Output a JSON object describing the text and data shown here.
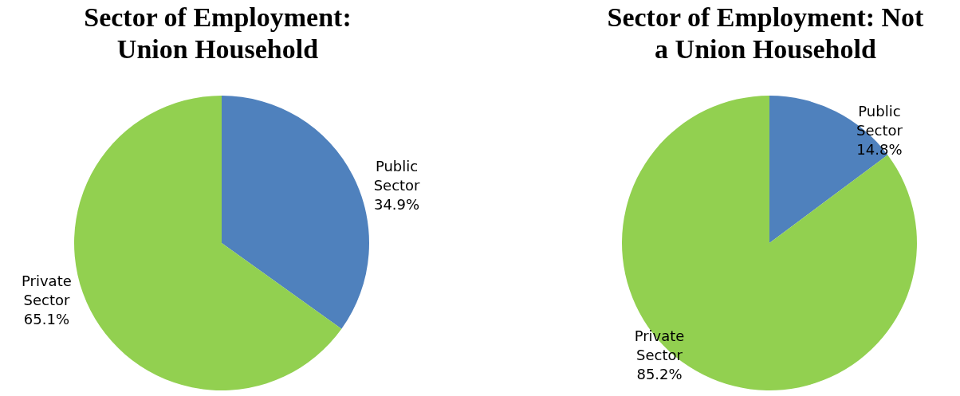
{
  "chart_data": [
    {
      "type": "pie",
      "title": "Sector of Employment: Union Household",
      "categories": [
        "Public Sector",
        "Private Sector"
      ],
      "values": [
        34.9,
        65.1
      ],
      "colors": [
        "#4f81bd",
        "#92d050"
      ],
      "value_labels": [
        "34.9%",
        "65.1%"
      ]
    },
    {
      "type": "pie",
      "title": "Sector of Employment: Not a Union Household",
      "categories": [
        "Public Sector",
        "Private Sector"
      ],
      "values": [
        14.8,
        85.2
      ],
      "colors": [
        "#4f81bd",
        "#92d050"
      ],
      "value_labels": [
        "14.8%",
        "85.2%"
      ]
    }
  ]
}
